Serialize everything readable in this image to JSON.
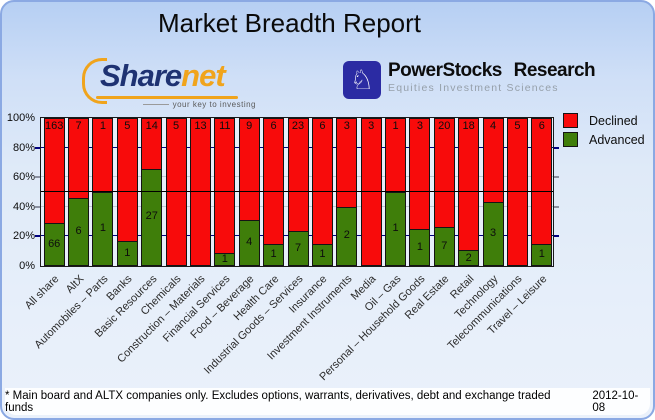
{
  "logos": {
    "sharenet": {
      "part1": "Share",
      "part2": "net",
      "tagline": "your key to investing"
    },
    "powerstocks": {
      "name": "PowerStocks Research",
      "tagline": "Equities Investment Sciences"
    }
  },
  "legend": {
    "declined": "Declined",
    "advanced": "Advanced"
  },
  "footer": {
    "note": "* Main board and ALTX companies only. Excludes options, warrants, derivatives, debt and exchange traded funds",
    "date": "2012-10-08"
  },
  "chart_data": {
    "type": "bar",
    "subtype": "stacked-100percent-column",
    "title": "Market Breadth Report",
    "categories": [
      "All share",
      "AltX",
      "Automobiles – Parts",
      "Banks",
      "Basic Resources",
      "Chemicals",
      "Construction – Materials",
      "Financial Services",
      "Food – Beverage",
      "Health Care",
      "Industrial Goods – Services",
      "Insurance",
      "Investment Instruments",
      "Media",
      "Oil – Gas",
      "Personal – Household Goods",
      "Real Estate",
      "Retail",
      "Technology",
      "Telecommunications",
      "Travel – Leisure"
    ],
    "series": [
      {
        "name": "Declined",
        "color": "#f80b0b",
        "values": [
          163,
          7,
          1,
          5,
          14,
          5,
          13,
          11,
          9,
          6,
          23,
          6,
          3,
          3,
          1,
          3,
          20,
          18,
          4,
          5,
          6
        ]
      },
      {
        "name": "Advanced",
        "color": "#3f7e0a",
        "values": [
          66,
          6,
          1,
          1,
          27,
          0,
          0,
          1,
          4,
          1,
          7,
          1,
          2,
          0,
          1,
          1,
          7,
          2,
          3,
          0,
          1
        ]
      }
    ],
    "y_ticks": [
      "0%",
      "20%",
      "40%",
      "60%",
      "80%",
      "100%"
    ],
    "ylim": [
      "0%",
      "100%"
    ],
    "reference_line": "50%",
    "legend_position": "right",
    "grid": "horizontal",
    "colors": {
      "grid_navy": "#000080",
      "grid_gray": "#c0c7d1",
      "reference_line": "#000000",
      "plot_background": "#e8effa"
    }
  }
}
